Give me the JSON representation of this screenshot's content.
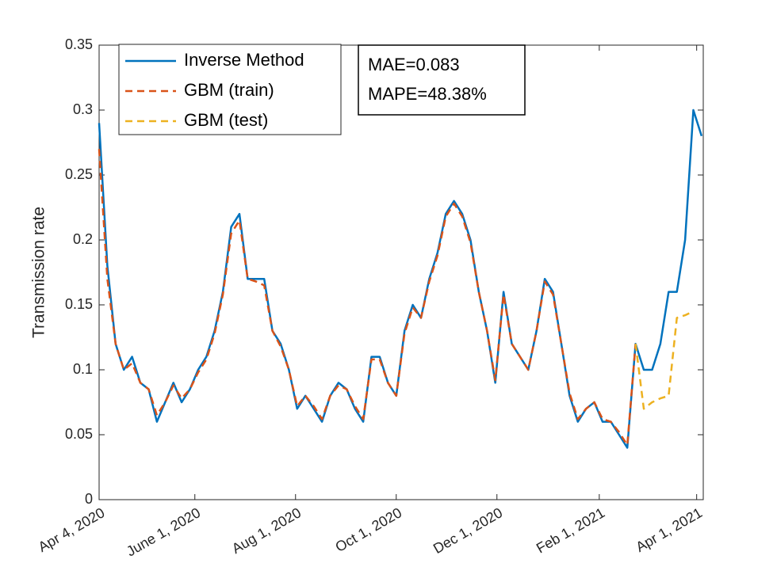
{
  "chart_data": {
    "type": "line",
    "ylabel": "Transmission rate",
    "annotations": [
      "MAE=0.083",
      "MAPE=48.38%"
    ],
    "legend": "upper left",
    "x": [
      "2020-04-04",
      "2020-04-09",
      "2020-04-14",
      "2020-04-19",
      "2020-04-24",
      "2020-04-29",
      "2020-05-04",
      "2020-05-09",
      "2020-05-14",
      "2020-05-19",
      "2020-05-24",
      "2020-05-29",
      "2020-06-03",
      "2020-06-08",
      "2020-06-13",
      "2020-06-18",
      "2020-06-23",
      "2020-06-28",
      "2020-07-03",
      "2020-07-08",
      "2020-07-13",
      "2020-07-18",
      "2020-07-23",
      "2020-07-28",
      "2020-08-02",
      "2020-08-07",
      "2020-08-12",
      "2020-08-17",
      "2020-08-22",
      "2020-08-27",
      "2020-09-01",
      "2020-09-06",
      "2020-09-11",
      "2020-09-16",
      "2020-09-21",
      "2020-09-26",
      "2020-10-01",
      "2020-10-06",
      "2020-10-11",
      "2020-10-16",
      "2020-10-21",
      "2020-10-26",
      "2020-10-31",
      "2020-11-05",
      "2020-11-10",
      "2020-11-15",
      "2020-11-20",
      "2020-11-25",
      "2020-11-30",
      "2020-12-05",
      "2020-12-10",
      "2020-12-15",
      "2020-12-20",
      "2020-12-25",
      "2020-12-30",
      "2021-01-04",
      "2021-01-09",
      "2021-01-14",
      "2021-01-19",
      "2021-01-24",
      "2021-01-29",
      "2021-02-03",
      "2021-02-08",
      "2021-02-13",
      "2021-02-18",
      "2021-02-23",
      "2021-02-28",
      "2021-03-05",
      "2021-03-10",
      "2021-03-15",
      "2021-03-20",
      "2021-03-25",
      "2021-03-30",
      "2021-04-04"
    ],
    "series": [
      {
        "name": "Inverse Method",
        "color": "#0072BD",
        "line_style": "solid",
        "values": [
          0.29,
          0.18,
          0.12,
          0.1,
          0.11,
          0.09,
          0.085,
          0.06,
          0.075,
          0.09,
          0.075,
          0.085,
          0.1,
          0.11,
          0.13,
          0.16,
          0.21,
          0.22,
          0.17,
          0.17,
          0.17,
          0.13,
          0.12,
          0.1,
          0.07,
          0.08,
          0.07,
          0.06,
          0.08,
          0.09,
          0.085,
          0.07,
          0.06,
          0.11,
          0.11,
          0.09,
          0.08,
          0.13,
          0.15,
          0.14,
          0.17,
          0.19,
          0.22,
          0.23,
          0.22,
          0.2,
          0.16,
          0.13,
          0.09,
          0.16,
          0.12,
          0.11,
          0.1,
          0.13,
          0.17,
          0.16,
          0.12,
          0.08,
          0.06,
          0.07,
          0.075,
          0.06,
          0.06,
          0.05,
          0.04,
          0.12,
          0.1,
          0.1,
          0.12,
          0.16,
          0.16,
          0.2,
          0.3,
          0.28
        ]
      },
      {
        "name": "GBM (train)",
        "color": "#D95319",
        "line_style": "dashed",
        "values": [
          0.27,
          0.17,
          0.12,
          0.1,
          0.105,
          0.09,
          0.085,
          0.065,
          0.075,
          0.088,
          0.078,
          0.085,
          0.098,
          0.108,
          0.128,
          0.158,
          0.205,
          0.215,
          0.17,
          0.168,
          0.165,
          0.13,
          0.118,
          0.1,
          0.072,
          0.08,
          0.072,
          0.062,
          0.08,
          0.088,
          0.085,
          0.072,
          0.062,
          0.108,
          0.108,
          0.09,
          0.08,
          0.128,
          0.148,
          0.14,
          0.168,
          0.188,
          0.218,
          0.228,
          0.218,
          0.198,
          0.16,
          0.13,
          0.092,
          0.158,
          0.12,
          0.11,
          0.1,
          0.13,
          0.168,
          0.158,
          0.12,
          0.082,
          0.062,
          0.07,
          0.075,
          0.062,
          0.06,
          0.052,
          0.042,
          0.12,
          null,
          null,
          null,
          null,
          null,
          null,
          null,
          null
        ]
      },
      {
        "name": "GBM (test)",
        "color": "#EDB120",
        "line_style": "dashed",
        "values": [
          null,
          null,
          null,
          null,
          null,
          null,
          null,
          null,
          null,
          null,
          null,
          null,
          null,
          null,
          null,
          null,
          null,
          null,
          null,
          null,
          null,
          null,
          null,
          null,
          null,
          null,
          null,
          null,
          null,
          null,
          null,
          null,
          null,
          null,
          null,
          null,
          null,
          null,
          null,
          null,
          null,
          null,
          null,
          null,
          null,
          null,
          null,
          null,
          null,
          null,
          null,
          null,
          null,
          null,
          null,
          null,
          null,
          null,
          null,
          null,
          null,
          null,
          null,
          null,
          null,
          0.12,
          0.07,
          0.075,
          0.078,
          0.08,
          0.14,
          0.142,
          0.145,
          null
        ]
      }
    ],
    "xlim": [
      "2020-04-04",
      "2021-04-05"
    ],
    "xticks": [
      {
        "value": "2020-04-04",
        "label": "Apr 4, 2020"
      },
      {
        "value": "2020-06-01",
        "label": "June 1, 2020"
      },
      {
        "value": "2020-08-01",
        "label": "Aug 1, 2020"
      },
      {
        "value": "2020-10-01",
        "label": "Oct 1, 2020"
      },
      {
        "value": "2020-12-01",
        "label": "Dec 1, 2020"
      },
      {
        "value": "2021-02-01",
        "label": "Feb 1, 2021"
      },
      {
        "value": "2021-04-01",
        "label": "Apr 1, 2021"
      }
    ],
    "ylim": [
      0,
      0.35
    ],
    "yticks": [
      0,
      0.05,
      0.1,
      0.15,
      0.2,
      0.25,
      0.3,
      0.35
    ],
    "grid": false
  }
}
